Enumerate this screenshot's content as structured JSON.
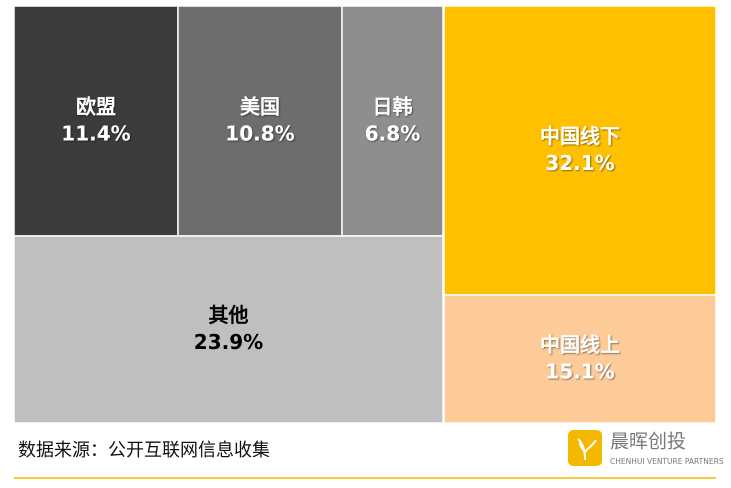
{
  "chart_data": {
    "type": "treemap",
    "categories": [
      "欧盟",
      "美国",
      "日韩",
      "中国线下",
      "其他",
      "中国线上"
    ],
    "values": [
      11.4,
      10.8,
      6.8,
      32.1,
      23.9,
      15.1
    ],
    "value_labels": [
      "11.4%",
      "10.8%",
      "6.8%",
      "32.1%",
      "23.9%",
      "15.1%"
    ],
    "colors": [
      "#3b3b3b",
      "#6d6d6d",
      "#8e8e8e",
      "#ffc000",
      "#bfbfbf",
      "#fdcb98"
    ],
    "label_colors": [
      "#ffffff",
      "#ffffff",
      "#ffffff",
      "#ffffff",
      "#000000",
      "#ffffff"
    ],
    "source": "数据来源：公开互联网信息收集"
  },
  "logo": {
    "name": "晨晖创投",
    "tagline": "CHENHUI VENTURE PARTNERS"
  }
}
